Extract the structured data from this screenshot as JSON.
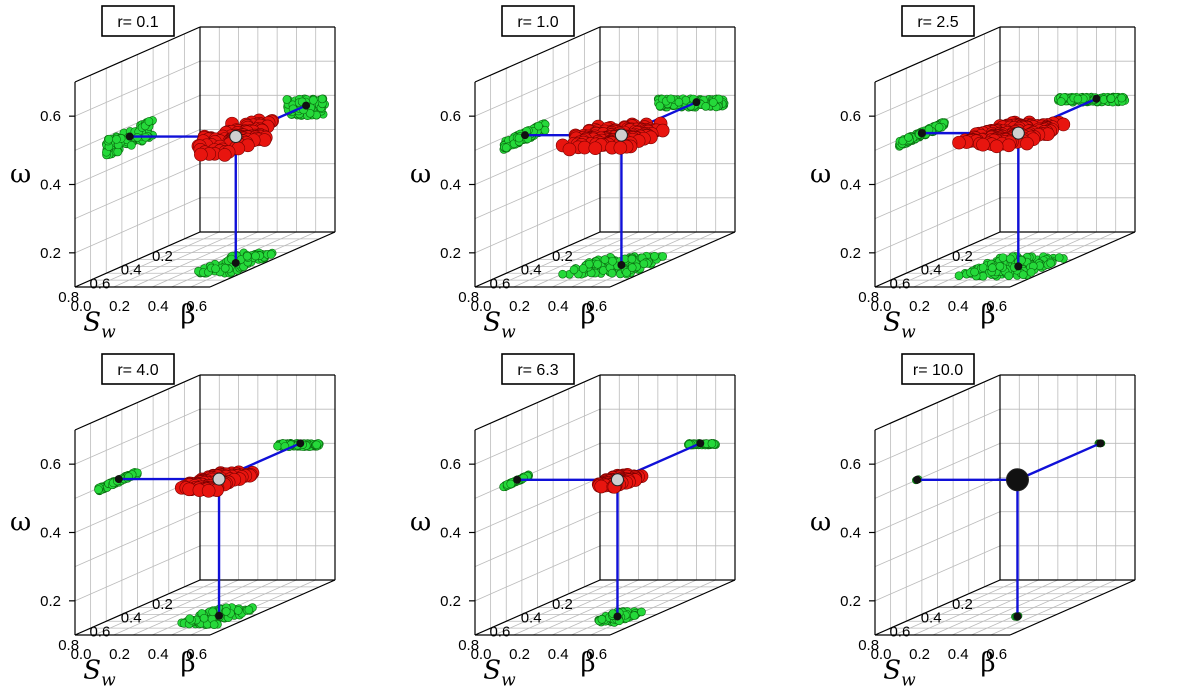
{
  "figure": {
    "axis_labels": {
      "x": "S",
      "x_subscript": "w",
      "y": "β",
      "z": "ω"
    },
    "x_ticks": [
      "0.2",
      "0.4",
      "0.6",
      "0.8"
    ],
    "y_ticks": [
      "0.0",
      "0.2",
      "0.4",
      "0.6"
    ],
    "z_ticks": [
      "0.2",
      "0.4",
      "0.6"
    ],
    "colors": {
      "main_points": "#e8150f",
      "projection_points": "#25d93a",
      "connector_lines": "#1010d8",
      "center_marker": "#111111",
      "grid_lines": "#bbbbbb"
    }
  },
  "chart_data": [
    {
      "type": "scatter",
      "dims": "3d",
      "label": "r= 0.1",
      "xlabel": "S_w",
      "ylabel": "β",
      "zlabel": "ω",
      "xlim": [
        0.1,
        0.9
      ],
      "ylim": [
        0.0,
        0.7
      ],
      "zlim": [
        0.1,
        0.7
      ],
      "grid": true,
      "center": {
        "Sw": 0.55,
        "beta": 0.55,
        "omega": 0.47
      },
      "spread": {
        "Sw": [
          0.4,
          0.7
        ],
        "beta": [
          0.45,
          0.65
        ],
        "omega": [
          0.44,
          0.49
        ]
      }
    },
    {
      "type": "scatter",
      "dims": "3d",
      "label": "r= 1.0",
      "xlabel": "S_w",
      "ylabel": "β",
      "zlabel": "ω",
      "xlim": [
        0.1,
        0.9
      ],
      "ylim": [
        0.0,
        0.7
      ],
      "zlim": [
        0.1,
        0.7
      ],
      "grid": true,
      "center": {
        "Sw": 0.58,
        "beta": 0.5,
        "omega": 0.48
      },
      "spread": {
        "Sw": [
          0.45,
          0.72
        ],
        "beta": [
          0.3,
          0.65
        ],
        "omega": [
          0.465,
          0.49
        ]
      }
    },
    {
      "type": "scatter",
      "dims": "3d",
      "label": "r= 2.5",
      "xlabel": "S_w",
      "ylabel": "β",
      "zlabel": "ω",
      "xlim": [
        0.1,
        0.9
      ],
      "ylim": [
        0.0,
        0.7
      ],
      "zlim": [
        0.1,
        0.7
      ],
      "grid": true,
      "center": {
        "Sw": 0.6,
        "beta": 0.5,
        "omega": 0.49
      },
      "spread": {
        "Sw": [
          0.45,
          0.75
        ],
        "beta": [
          0.3,
          0.65
        ],
        "omega": [
          0.48,
          0.495
        ]
      }
    },
    {
      "type": "scatter",
      "dims": "3d",
      "label": "r= 4.0",
      "xlabel": "S_w",
      "ylabel": "β",
      "zlabel": "ω",
      "xlim": [
        0.1,
        0.9
      ],
      "ylim": [
        0.0,
        0.7
      ],
      "zlim": [
        0.1,
        0.7
      ],
      "grid": true,
      "center": {
        "Sw": 0.62,
        "beta": 0.52,
        "omega": 0.5
      },
      "spread": {
        "Sw": [
          0.5,
          0.75
        ],
        "beta": [
          0.4,
          0.62
        ],
        "omega": [
          0.49,
          0.5
        ]
      }
    },
    {
      "type": "scatter",
      "dims": "3d",
      "label": "r= 6.3",
      "xlabel": "S_w",
      "ylabel": "β",
      "zlabel": "ω",
      "xlim": [
        0.1,
        0.9
      ],
      "ylim": [
        0.0,
        0.7
      ],
      "zlim": [
        0.1,
        0.7
      ],
      "grid": true,
      "center": {
        "Sw": 0.63,
        "beta": 0.52,
        "omega": 0.5
      },
      "spread": {
        "Sw": [
          0.55,
          0.72
        ],
        "beta": [
          0.45,
          0.6
        ],
        "omega": [
          0.495,
          0.5
        ]
      }
    },
    {
      "type": "scatter",
      "dims": "3d",
      "label": "r= 10.0",
      "xlabel": "S_w",
      "ylabel": "β",
      "zlabel": "ω",
      "xlim": [
        0.1,
        0.9
      ],
      "ylim": [
        0.0,
        0.7
      ],
      "zlim": [
        0.1,
        0.7
      ],
      "grid": true,
      "center": {
        "Sw": 0.63,
        "beta": 0.52,
        "omega": 0.5
      },
      "spread": {
        "Sw": [
          0.62,
          0.64
        ],
        "beta": [
          0.51,
          0.53
        ],
        "omega": [
          0.5,
          0.5
        ]
      }
    }
  ]
}
